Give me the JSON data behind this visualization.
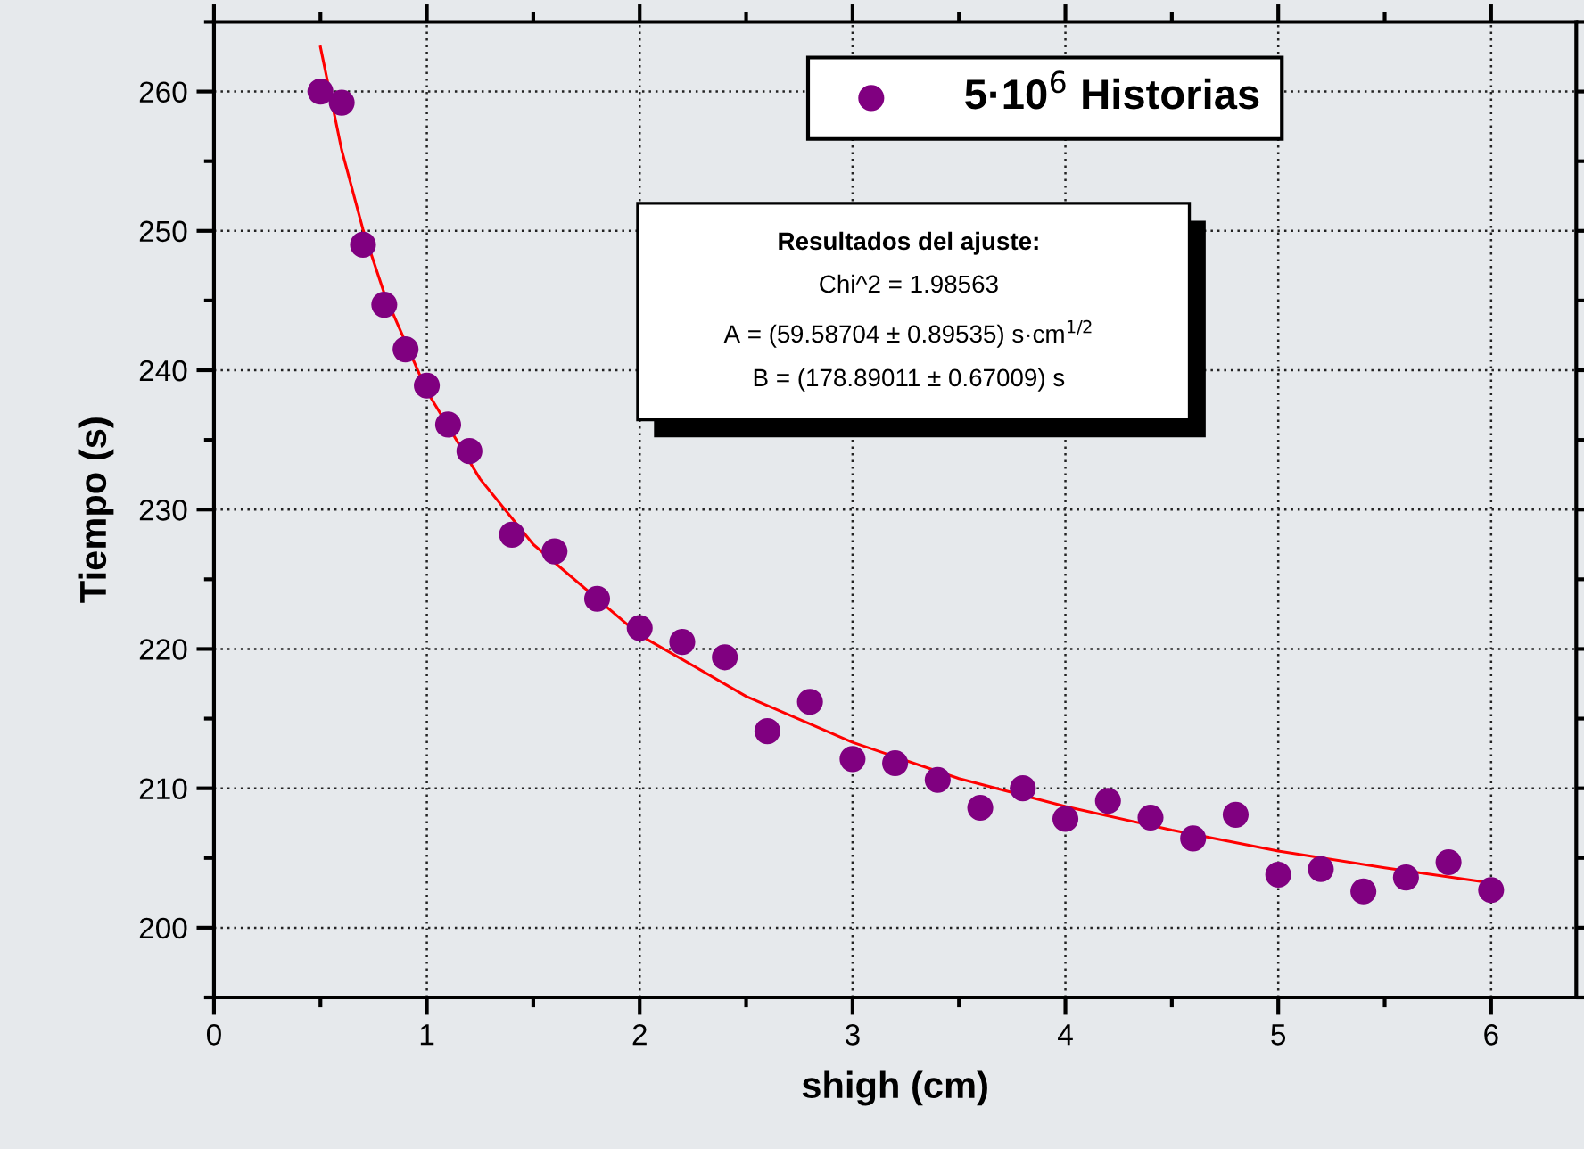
{
  "chart_data": {
    "type": "scatter",
    "xlabel": "shigh (cm)",
    "ylabel": "Tiempo (s)",
    "xlim": [
      0,
      6.4
    ],
    "ylim": [
      195,
      265
    ],
    "xticks": [
      0,
      1,
      2,
      3,
      4,
      5,
      6
    ],
    "yticks": [
      200,
      210,
      220,
      230,
      240,
      250,
      260
    ],
    "grid": true,
    "legend": "top",
    "marker": "circle",
    "series": [
      {
        "name": "5·10$^{6}$ Historias",
        "color": "#800080",
        "x": [
          0.5,
          0.6,
          0.7,
          0.8,
          0.9,
          1.0,
          1.1,
          1.2,
          1.4,
          1.6,
          1.8,
          2.0,
          2.2,
          2.4,
          2.6,
          2.8,
          3.0,
          3.2,
          3.4,
          3.6,
          3.8,
          4.0,
          4.2,
          4.4,
          4.6,
          4.8,
          5.0,
          5.2,
          5.4,
          5.6,
          5.8,
          6.0
        ],
        "values": [
          260.0,
          259.2,
          249.0,
          244.7,
          241.5,
          238.9,
          236.1,
          234.2,
          228.2,
          227.0,
          223.6,
          221.5,
          220.5,
          219.4,
          214.1,
          216.2,
          212.1,
          211.8,
          210.6,
          208.6,
          210.0,
          207.8,
          209.1,
          207.9,
          206.4,
          208.1,
          203.8,
          204.2,
          202.6,
          203.6,
          204.7,
          202.7
        ]
      },
      {
        "type": "line",
        "color": "#ff0000",
        "marker": "none",
        "line_style": "solid",
        "x": [
          0.5,
          0.6,
          0.7,
          0.8,
          1.0,
          1.25,
          1.5,
          2.0,
          2.5,
          3.0,
          3.5,
          4.0,
          4.5,
          5.0,
          5.5,
          6.0
        ],
        "values": [
          263.2,
          255.8,
          250.1,
          245.5,
          238.5,
          232.2,
          227.5,
          221.0,
          216.6,
          213.3,
          210.7,
          208.7,
          207.0,
          205.5,
          204.3,
          203.2
        ]
      }
    ],
    "annotations": [
      "Resultados del ajuste:",
      "Chi^2 = 1.98563",
      "A = (59.58704 ± 0.89535) s·cm$^{1/2}$",
      "B = (178.89011 ± 0.67009) s"
    ]
  }
}
